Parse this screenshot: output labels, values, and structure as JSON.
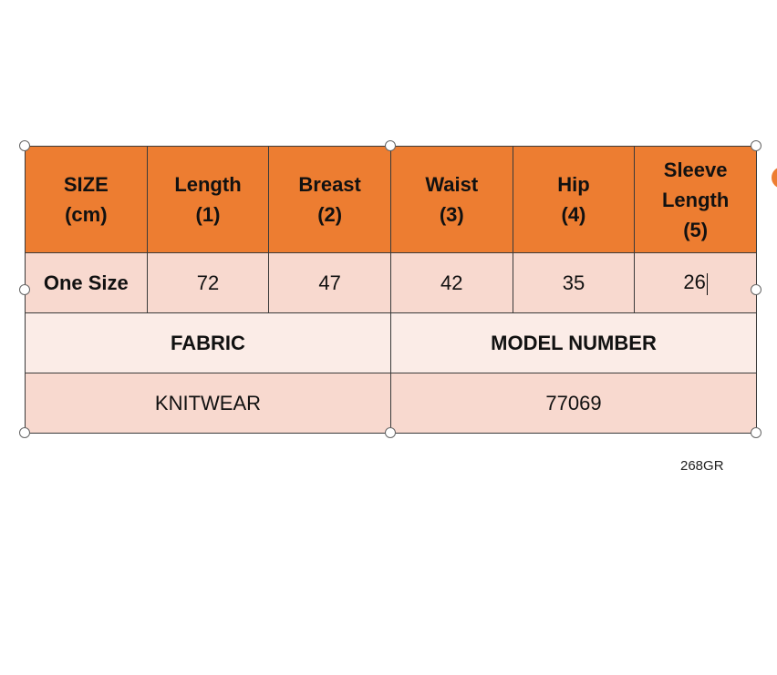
{
  "table": {
    "header": [
      "SIZE\n(cm)",
      "Length\n(1)",
      "Breast\n(2)",
      "Waist\n(3)",
      "Hip\n(4)",
      "Sleeve\nLength\n(5)"
    ],
    "size_row": [
      "One Size",
      "72",
      "47",
      "42",
      "35",
      "26"
    ],
    "info_labels": [
      "FABRIC",
      "MODEL NUMBER"
    ],
    "info_values": [
      "KNITWEAR",
      "77069"
    ]
  },
  "product_code": "268GR",
  "colors": {
    "header": "#ED7D31",
    "row": "#F8D9CF",
    "label_row": "#FBECE7"
  }
}
